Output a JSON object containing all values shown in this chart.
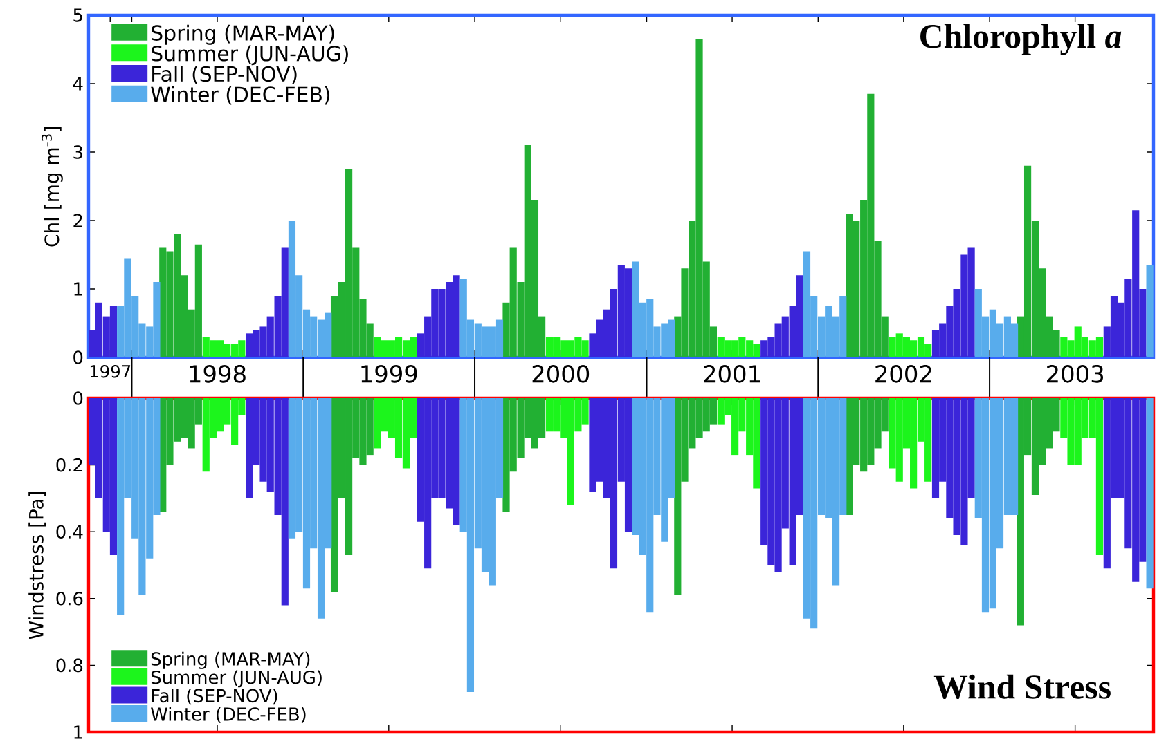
{
  "chart_data": [
    {
      "type": "bar",
      "title": "Chlorophyll *a*",
      "ylabel": "Chl [mg m$^{-3}$]",
      "xlim": [
        "1997-10-01",
        "2003-12-16"
      ],
      "xticks": [
        {
          "value": "1997-11-16",
          "label": "1997"
        },
        {
          "value": "1998-01-01",
          "label": null
        },
        {
          "value": "1998-07-02",
          "label": "1998"
        },
        {
          "value": "1999-01-01",
          "label": null
        },
        {
          "value": "1999-07-02",
          "label": "1999"
        },
        {
          "value": "2000-01-01",
          "label": null
        },
        {
          "value": "2000-07-02",
          "label": "2000"
        },
        {
          "value": "2001-01-01",
          "label": null
        },
        {
          "value": "2001-07-02",
          "label": "2001"
        },
        {
          "value": "2002-01-01",
          "label": null
        },
        {
          "value": "2002-07-02",
          "label": "2002"
        },
        {
          "value": "2003-01-01",
          "label": null
        },
        {
          "value": "2003-07-02",
          "label": "2003"
        }
      ],
      "ylim": [
        0,
        5
      ],
      "yticks": [
        0,
        1,
        2,
        3,
        4,
        5
      ],
      "legend": "top left",
      "series": [
        {
          "name": "Spring (MAR-MAY)",
          "color": "#22b033",
          "x": [
            "1998-03-08",
            "1998-03-23",
            "1998-04-08",
            "1998-04-23",
            "1998-05-08",
            "1998-05-23",
            "1999-03-08",
            "1999-03-23",
            "1999-04-08",
            "1999-04-23",
            "1999-05-08",
            "1999-05-23",
            "2000-03-08",
            "2000-03-23",
            "2000-04-08",
            "2000-04-23",
            "2000-05-08",
            "2000-05-23",
            "2001-03-08",
            "2001-03-23",
            "2001-04-08",
            "2001-04-23",
            "2001-05-08",
            "2001-05-23",
            "2002-03-08",
            "2002-03-23",
            "2002-04-08",
            "2002-04-23",
            "2002-05-08",
            "2002-05-23",
            "2003-03-08",
            "2003-03-23",
            "2003-04-08",
            "2003-04-23",
            "2003-05-08",
            "2003-05-23"
          ],
          "values": [
            1.6,
            1.55,
            1.8,
            1.2,
            0.7,
            1.65,
            0.9,
            1.1,
            2.75,
            1.6,
            0.85,
            0.5,
            0.8,
            1.6,
            1.1,
            3.1,
            2.3,
            0.6,
            0.6,
            1.3,
            2.0,
            4.65,
            1.4,
            0.45,
            2.1,
            2.0,
            2.3,
            3.85,
            1.7,
            0.6,
            0.6,
            2.8,
            2.0,
            1.3,
            0.6,
            0.4
          ]
        },
        {
          "name": "Summer (JUN-AUG)",
          "color": "#1cf51c",
          "x": [
            "1998-06-08",
            "1998-06-23",
            "1998-07-08",
            "1998-07-23",
            "1998-08-08",
            "1998-08-23",
            "1999-06-08",
            "1999-06-23",
            "1999-07-08",
            "1999-07-23",
            "1999-08-08",
            "1999-08-23",
            "2000-06-08",
            "2000-06-23",
            "2000-07-08",
            "2000-07-23",
            "2000-08-08",
            "2000-08-23",
            "2001-06-08",
            "2001-06-23",
            "2001-07-08",
            "2001-07-23",
            "2001-08-08",
            "2001-08-23",
            "2002-06-08",
            "2002-06-23",
            "2002-07-08",
            "2002-07-23",
            "2002-08-08",
            "2002-08-23",
            "2003-06-08",
            "2003-06-23",
            "2003-07-08",
            "2003-07-23",
            "2003-08-08",
            "2003-08-23"
          ],
          "values": [
            0.3,
            0.25,
            0.25,
            0.2,
            0.2,
            0.25,
            0.3,
            0.25,
            0.25,
            0.3,
            0.25,
            0.3,
            0.3,
            0.3,
            0.25,
            0.25,
            0.3,
            0.25,
            0.3,
            0.25,
            0.25,
            0.3,
            0.25,
            0.2,
            0.3,
            0.35,
            0.3,
            0.25,
            0.3,
            0.2,
            0.3,
            0.25,
            0.45,
            0.3,
            0.25,
            0.3
          ]
        },
        {
          "name": "Fall (SEP-NOV)",
          "color": "#3b25d9",
          "x": [
            "1997-10-08",
            "1997-10-23",
            "1997-11-08",
            "1997-11-23",
            "1998-09-08",
            "1998-09-23",
            "1998-10-08",
            "1998-10-23",
            "1998-11-08",
            "1998-11-23",
            "1999-09-08",
            "1999-09-23",
            "1999-10-08",
            "1999-10-23",
            "1999-11-08",
            "1999-11-23",
            "2000-09-08",
            "2000-09-23",
            "2000-10-08",
            "2000-10-23",
            "2000-11-08",
            "2000-11-23",
            "2001-09-08",
            "2001-09-23",
            "2001-10-08",
            "2001-10-23",
            "2001-11-08",
            "2001-11-23",
            "2002-09-08",
            "2002-09-23",
            "2002-10-08",
            "2002-10-23",
            "2002-11-08",
            "2002-11-23",
            "2003-09-08",
            "2003-09-23",
            "2003-10-08",
            "2003-10-23",
            "2003-11-08",
            "2003-11-23"
          ],
          "values": [
            0.4,
            0.8,
            0.6,
            0.75,
            0.35,
            0.4,
            0.45,
            0.6,
            0.9,
            1.6,
            0.35,
            0.6,
            1.0,
            1.0,
            1.1,
            1.2,
            0.35,
            0.55,
            0.7,
            1.0,
            1.35,
            1.3,
            0.25,
            0.3,
            0.5,
            0.6,
            0.75,
            1.2,
            0.4,
            0.5,
            0.75,
            1.0,
            1.5,
            1.6,
            0.45,
            0.9,
            0.8,
            1.15,
            2.15,
            1.0
          ]
        },
        {
          "name": "Winter (DEC-FEB)",
          "color": "#58acec",
          "x": [
            "1997-12-08",
            "1997-12-23",
            "1998-01-08",
            "1998-01-23",
            "1998-02-08",
            "1998-02-23",
            "1998-12-08",
            "1998-12-23",
            "1999-01-08",
            "1999-01-23",
            "1999-02-08",
            "1999-02-23",
            "1999-12-08",
            "1999-12-23",
            "2000-01-08",
            "2000-01-23",
            "2000-02-08",
            "2000-02-23",
            "2000-12-08",
            "2000-12-23",
            "2001-01-08",
            "2001-01-23",
            "2001-02-08",
            "2001-02-23",
            "2001-12-08",
            "2001-12-23",
            "2002-01-08",
            "2002-01-23",
            "2002-02-08",
            "2002-02-23",
            "2002-12-08",
            "2002-12-23",
            "2003-01-08",
            "2003-01-23",
            "2003-02-08",
            "2003-02-23",
            "2003-12-08"
          ],
          "values": [
            0.75,
            1.45,
            0.9,
            0.5,
            0.45,
            1.1,
            2.0,
            1.2,
            0.7,
            0.6,
            0.55,
            0.65,
            1.15,
            0.55,
            0.5,
            0.45,
            0.45,
            0.55,
            1.4,
            0.8,
            0.85,
            0.45,
            0.5,
            0.55,
            1.55,
            0.9,
            0.6,
            0.75,
            0.6,
            0.9,
            1.0,
            0.6,
            0.7,
            0.5,
            0.6,
            0.5,
            1.35
          ]
        }
      ]
    },
    {
      "type": "bar",
      "title": "Wind Stress",
      "ylabel": "Windstress [Pa]",
      "xlim": [
        "1997-10-01",
        "2003-12-16"
      ],
      "xticks": [
        {
          "value": "1998-07-02",
          "label": null
        },
        {
          "value": "1999-07-02",
          "label": null
        },
        {
          "value": "2000-07-02",
          "label": null
        },
        {
          "value": "2001-07-02",
          "label": null
        },
        {
          "value": "2002-07-02",
          "label": null
        },
        {
          "value": "2003-07-02",
          "label": null
        }
      ],
      "ylim": [
        1,
        0
      ],
      "yticks": [
        0,
        0.2,
        0.4,
        0.6,
        0.8,
        1
      ],
      "legend": "bottom left",
      "tick_labels": "y",
      "series": [
        {
          "name": "Spring (MAR-MAY)",
          "color": "#22b033",
          "x": [
            "1998-03-08",
            "1998-03-23",
            "1998-04-08",
            "1998-04-23",
            "1998-05-08",
            "1998-05-23",
            "1999-03-08",
            "1999-03-23",
            "1999-04-08",
            "1999-04-23",
            "1999-05-08",
            "1999-05-23",
            "2000-03-08",
            "2000-03-23",
            "2000-04-08",
            "2000-04-23",
            "2000-05-08",
            "2000-05-23",
            "2001-03-08",
            "2001-03-23",
            "2001-04-08",
            "2001-04-23",
            "2001-05-08",
            "2001-05-23",
            "2002-03-08",
            "2002-03-23",
            "2002-04-08",
            "2002-04-23",
            "2002-05-08",
            "2002-05-23",
            "2003-03-08",
            "2003-03-23",
            "2003-04-08",
            "2003-04-23",
            "2003-05-08",
            "2003-05-23"
          ],
          "values": [
            0.34,
            0.2,
            0.13,
            0.12,
            0.15,
            0.08,
            0.58,
            0.3,
            0.47,
            0.18,
            0.2,
            0.17,
            0.34,
            0.22,
            0.18,
            0.12,
            0.15,
            0.12,
            0.59,
            0.25,
            0.15,
            0.12,
            0.1,
            0.08,
            0.35,
            0.2,
            0.22,
            0.2,
            0.15,
            0.1,
            0.68,
            0.17,
            0.29,
            0.2,
            0.15,
            0.1
          ]
        },
        {
          "name": "Summer (JUN-AUG)",
          "color": "#1cf51c",
          "x": [
            "1998-06-08",
            "1998-06-23",
            "1998-07-08",
            "1998-07-23",
            "1998-08-08",
            "1998-08-23",
            "1999-06-08",
            "1999-06-23",
            "1999-07-08",
            "1999-07-23",
            "1999-08-08",
            "1999-08-23",
            "2000-06-08",
            "2000-06-23",
            "2000-07-08",
            "2000-07-23",
            "2000-08-08",
            "2000-08-23",
            "2001-06-08",
            "2001-06-23",
            "2001-07-08",
            "2001-07-23",
            "2001-08-08",
            "2001-08-23",
            "2002-06-08",
            "2002-06-23",
            "2002-07-08",
            "2002-07-23",
            "2002-08-08",
            "2002-08-23",
            "2003-06-08",
            "2003-06-23",
            "2003-07-08",
            "2003-07-23",
            "2003-08-08",
            "2003-08-23"
          ],
          "values": [
            0.22,
            0.12,
            0.1,
            0.08,
            0.14,
            0.05,
            0.15,
            0.1,
            0.12,
            0.18,
            0.21,
            0.12,
            0.1,
            0.1,
            0.12,
            0.32,
            0.1,
            0.08,
            0.08,
            0.05,
            0.17,
            0.1,
            0.17,
            0.27,
            0.21,
            0.25,
            0.15,
            0.27,
            0.13,
            0.25,
            0.12,
            0.2,
            0.2,
            0.12,
            0.12,
            0.47
          ]
        },
        {
          "name": "Fall (SEP-NOV)",
          "color": "#3b25d9",
          "x": [
            "1997-10-08",
            "1997-10-23",
            "1997-11-08",
            "1997-11-23",
            "1998-09-08",
            "1998-09-23",
            "1998-10-08",
            "1998-10-23",
            "1998-11-08",
            "1998-11-23",
            "1999-09-08",
            "1999-09-23",
            "1999-10-08",
            "1999-10-23",
            "1999-11-08",
            "1999-11-23",
            "2000-09-08",
            "2000-09-23",
            "2000-10-08",
            "2000-10-23",
            "2000-11-08",
            "2000-11-23",
            "2001-09-08",
            "2001-09-23",
            "2001-10-08",
            "2001-10-23",
            "2001-11-08",
            "2001-11-23",
            "2002-09-08",
            "2002-09-23",
            "2002-10-08",
            "2002-10-23",
            "2002-11-08",
            "2002-11-23",
            "2003-09-08",
            "2003-09-23",
            "2003-10-08",
            "2003-10-23",
            "2003-11-08",
            "2003-11-23"
          ],
          "values": [
            0.2,
            0.3,
            0.4,
            0.47,
            0.3,
            0.2,
            0.25,
            0.28,
            0.35,
            0.62,
            0.37,
            0.51,
            0.3,
            0.3,
            0.33,
            0.38,
            0.28,
            0.25,
            0.3,
            0.51,
            0.25,
            0.4,
            0.44,
            0.5,
            0.52,
            0.39,
            0.5,
            0.35,
            0.3,
            0.25,
            0.36,
            0.41,
            0.44,
            0.3,
            0.51,
            0.3,
            0.3,
            0.45,
            0.55,
            0.49
          ]
        },
        {
          "name": "Winter (DEC-FEB)",
          "color": "#58acec",
          "x": [
            "1997-12-08",
            "1997-12-23",
            "1998-01-08",
            "1998-01-23",
            "1998-02-08",
            "1998-02-23",
            "1998-12-08",
            "1998-12-23",
            "1999-01-08",
            "1999-01-23",
            "1999-02-08",
            "1999-02-23",
            "1999-12-08",
            "1999-12-23",
            "2000-01-08",
            "2000-01-23",
            "2000-02-08",
            "2000-02-23",
            "2000-12-08",
            "2000-12-23",
            "2001-01-08",
            "2001-01-23",
            "2001-02-08",
            "2001-02-23",
            "2001-12-08",
            "2001-12-23",
            "2002-01-08",
            "2002-01-23",
            "2002-02-08",
            "2002-02-23",
            "2002-12-08",
            "2002-12-23",
            "2003-01-08",
            "2003-01-23",
            "2003-02-08",
            "2003-02-23",
            "2003-12-08"
          ],
          "values": [
            0.65,
            0.3,
            0.42,
            0.59,
            0.48,
            0.35,
            0.42,
            0.4,
            0.57,
            0.45,
            0.66,
            0.45,
            0.4,
            0.88,
            0.45,
            0.52,
            0.56,
            0.3,
            0.41,
            0.47,
            0.64,
            0.35,
            0.43,
            0.3,
            0.66,
            0.69,
            0.35,
            0.36,
            0.56,
            0.35,
            0.36,
            0.64,
            0.63,
            0.45,
            0.35,
            0.35,
            0.57
          ]
        }
      ]
    }
  ]
}
